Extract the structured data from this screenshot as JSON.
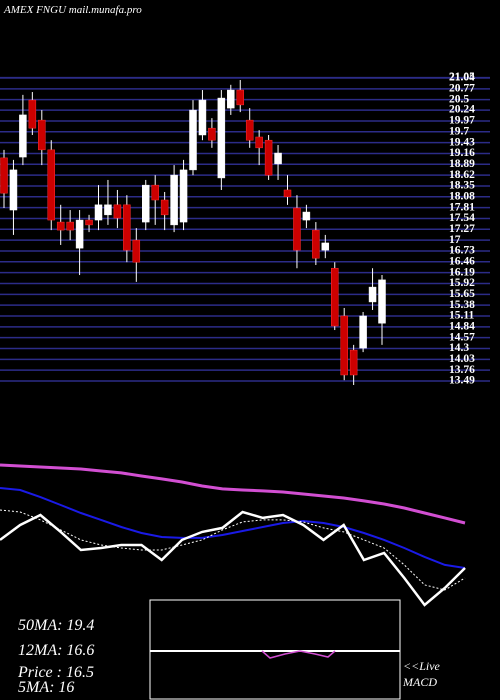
{
  "chart_data": [
    {
      "type": "candlestick",
      "title": "AMEX  FNGU mail.munafa.pro",
      "open": [
        19.05,
        17.75,
        19.07,
        20.49,
        19.99,
        19.25,
        17.45,
        17.45,
        16.8,
        17.5,
        17.5,
        17.63,
        17.88,
        17.88,
        17.0,
        17.45,
        18.37,
        18.0,
        17.38,
        17.45,
        18.75,
        19.62,
        19.79,
        18.55,
        20.29,
        20.74,
        19.99,
        19.57,
        19.49,
        18.9,
        18.25,
        17.8,
        17.5,
        17.25,
        16.75,
        16.3,
        15.11,
        14.26,
        14.31,
        15.46,
        14.93
      ],
      "high": [
        19.25,
        19.0,
        20.62,
        20.69,
        20.24,
        19.49,
        17.88,
        17.75,
        17.75,
        17.63,
        18.37,
        18.5,
        18.25,
        18.12,
        17.3,
        18.5,
        18.62,
        18.2,
        18.87,
        19.0,
        20.49,
        20.74,
        20.04,
        20.74,
        20.87,
        20.99,
        20.29,
        19.74,
        19.62,
        19.37,
        18.62,
        18.12,
        17.88,
        17.45,
        17.13,
        16.45,
        15.31,
        14.39,
        15.21,
        16.3,
        16.13
      ],
      "low": [
        17.8,
        17.13,
        18.87,
        19.62,
        18.87,
        17.25,
        16.88,
        17.0,
        16.13,
        17.2,
        17.25,
        17.38,
        17.3,
        16.45,
        15.96,
        17.25,
        17.38,
        17.25,
        17.2,
        17.25,
        18.62,
        19.49,
        19.3,
        18.25,
        20.12,
        20.19,
        19.3,
        18.87,
        18.5,
        18.5,
        17.88,
        16.3,
        17.3,
        16.38,
        16.55,
        14.76,
        13.51,
        13.39,
        14.21,
        15.26,
        14.39
      ],
      "close": [
        18.17,
        18.75,
        20.12,
        19.79,
        19.25,
        17.5,
        17.25,
        17.25,
        17.5,
        17.38,
        17.88,
        17.88,
        17.55,
        16.75,
        16.45,
        18.37,
        18.0,
        17.63,
        18.62,
        18.75,
        20.24,
        20.49,
        19.49,
        20.54,
        20.74,
        20.37,
        19.49,
        19.3,
        18.62,
        19.17,
        18.08,
        16.75,
        17.7,
        16.55,
        16.93,
        14.86,
        13.64,
        13.64,
        15.11,
        15.83,
        16.01
      ],
      "ylim": [
        13.49,
        21.04
      ],
      "yticks": [
        21.05,
        21.04,
        20.77,
        20.5,
        20.24,
        19.97,
        19.7,
        19.43,
        19.16,
        18.89,
        18.62,
        18.35,
        18.08,
        17.81,
        17.54,
        17.27,
        17,
        16.73,
        16.46,
        16.19,
        15.92,
        15.65,
        15.38,
        15.11,
        14.84,
        14.57,
        14.3,
        14.03,
        13.76,
        13.49
      ],
      "grid": true,
      "grid_color": "#2c2c88",
      "up_color": "#ffffff",
      "down_color": "#cc0000"
    },
    {
      "type": "line",
      "ylim": [
        13.5,
        27.5
      ],
      "series": [
        {
          "color": "#d24fd2",
          "width": 3,
          "values": [
            23.27,
            23.2,
            23.14,
            23.07,
            23.01,
            22.88,
            22.75,
            22.55,
            22.36,
            22.16,
            21.9,
            21.71,
            21.64,
            21.58,
            21.51,
            21.38,
            21.25,
            21.12,
            20.93,
            20.73,
            20.47,
            20.14,
            19.82,
            19.49
          ]
        },
        {
          "color": "#1a1ae6",
          "width": 2,
          "values": [
            21.77,
            21.64,
            21.18,
            20.66,
            20.14,
            19.69,
            19.23,
            18.84,
            18.58,
            18.52,
            18.52,
            18.71,
            18.97,
            19.23,
            19.49,
            19.62,
            19.49,
            19.23,
            18.84,
            18.39,
            17.86,
            17.28,
            16.76,
            16.56
          ]
        },
        {
          "color": "#ffffff",
          "width": 2.5,
          "values": [
            18.39,
            19.36,
            20.01,
            18.91,
            17.73,
            17.86,
            18.06,
            18.06,
            17.08,
            18.39,
            18.91,
            19.17,
            20.21,
            19.82,
            20.01,
            19.36,
            18.39,
            19.36,
            17.08,
            17.54,
            15.91,
            14.15,
            15.26,
            16.56
          ]
        },
        {
          "color": "#ffffff",
          "width": 1,
          "dash": "2 2",
          "values": [
            20.34,
            20.21,
            19.69,
            19.04,
            18.39,
            18.06,
            17.86,
            17.73,
            17.73,
            18.06,
            18.39,
            19.04,
            19.56,
            19.69,
            19.69,
            19.56,
            19.17,
            18.91,
            18.39,
            17.86,
            16.76,
            15.46,
            15.13,
            15.91
          ]
        }
      ]
    }
  ],
  "stats": [
    "50MA: 19.4",
    "12MA: 16.6",
    "Price  : 16.5",
    "5MA: 16"
  ],
  "macd_label": [
    "<<Live",
    "MACD"
  ]
}
